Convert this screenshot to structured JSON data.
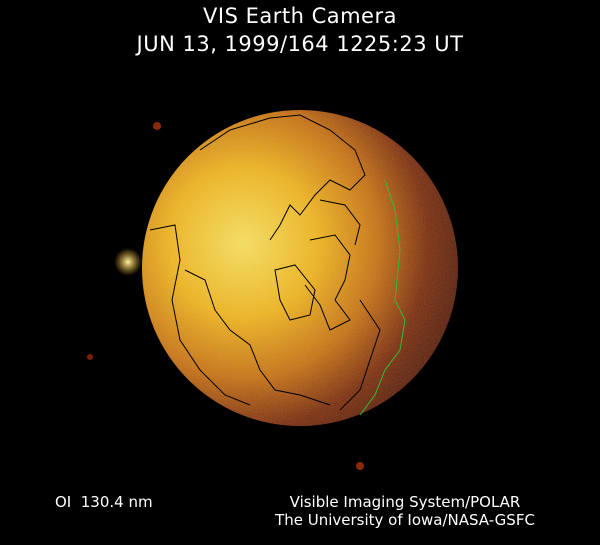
{
  "header": {
    "title": "VIS Earth Camera",
    "timestamp": "JUN 13, 1999/164 1225:23 UT"
  },
  "footer": {
    "filter": "OI  130.4 nm",
    "credit_line1": "Visible Imaging System/POLAR",
    "credit_line2": "The University of Iowa/NASA-GSFC"
  },
  "colors": {
    "background": "#000000",
    "dayside": "#f5c21a",
    "nightside": "#5a1a06",
    "coastline": "#000000",
    "terminator_coastline": "#2fbf2f"
  }
}
